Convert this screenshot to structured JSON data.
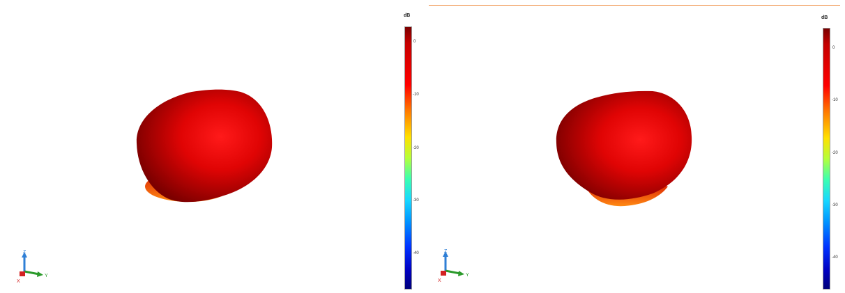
{
  "panels": [
    {
      "id": "left",
      "colorbar": {
        "unit": "dB",
        "ticks": [
          "0",
          "-10",
          "-20",
          "-30",
          "-40"
        ]
      },
      "axes": {
        "z": "Z",
        "y": "Y",
        "x": "X"
      }
    },
    {
      "id": "right",
      "colorbar": {
        "unit": "dB",
        "ticks": [
          "0",
          "-10",
          "-20",
          "-30",
          "-40"
        ]
      },
      "axes": {
        "z": "Z",
        "y": "Y",
        "x": "X"
      }
    }
  ],
  "colors": {
    "pattern_dark": "#7c0000",
    "pattern_mid": "#d40000",
    "pattern_bright": "#ff1a1a",
    "pattern_bottom": "#ff7a10",
    "divider": "#ef8a3c",
    "axis_z": "#2f7fd6",
    "axis_y": "#2b9a2b",
    "axis_x": "#d32222"
  }
}
